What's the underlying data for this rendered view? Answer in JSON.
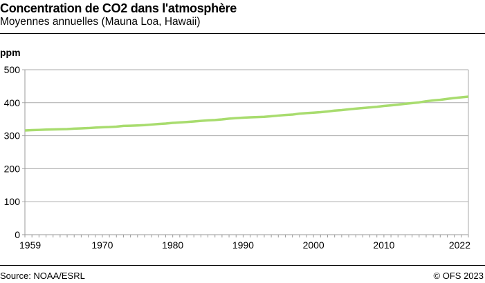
{
  "header": {
    "title": "Concentration de CO2 dans l'atmosphère",
    "subtitle": "Moyennes annuelles (Mauna Loa, Hawaii)"
  },
  "footer": {
    "source": "Source: NOAA/ESRL",
    "copyright": "© OFS 2023"
  },
  "chart_data": {
    "type": "line",
    "title": "Concentration de CO2 dans l'atmosphère",
    "subtitle": "Moyennes annuelles (Mauna Loa, Hawaii)",
    "ylabel": "ppm",
    "xlabel": "",
    "xlim": [
      1959,
      2022
    ],
    "ylim": [
      0,
      500
    ],
    "x_tick_labels": [
      "1959",
      "1970",
      "1980",
      "1990",
      "2000",
      "2010",
      "2022"
    ],
    "y_tick_labels": [
      "0",
      "100",
      "200",
      "300",
      "400",
      "500"
    ],
    "grid": "horizontal",
    "line_color": "#a8dc6e",
    "x": [
      1959,
      1960,
      1961,
      1962,
      1963,
      1964,
      1965,
      1966,
      1967,
      1968,
      1969,
      1970,
      1971,
      1972,
      1973,
      1974,
      1975,
      1976,
      1977,
      1978,
      1979,
      1980,
      1981,
      1982,
      1983,
      1984,
      1985,
      1986,
      1987,
      1988,
      1989,
      1990,
      1991,
      1992,
      1993,
      1994,
      1995,
      1996,
      1997,
      1998,
      1999,
      2000,
      2001,
      2002,
      2003,
      2004,
      2005,
      2006,
      2007,
      2008,
      2009,
      2010,
      2011,
      2012,
      2013,
      2014,
      2015,
      2016,
      2017,
      2018,
      2019,
      2020,
      2021,
      2022
    ],
    "values": [
      316.0,
      316.9,
      317.6,
      318.5,
      319.0,
      319.6,
      320.0,
      321.4,
      322.2,
      323.1,
      324.6,
      325.7,
      326.3,
      327.5,
      329.7,
      330.2,
      331.1,
      332.0,
      333.8,
      335.4,
      336.8,
      338.8,
      340.1,
      341.5,
      343.2,
      344.9,
      346.4,
      347.6,
      349.3,
      351.7,
      353.2,
      354.5,
      355.7,
      356.5,
      357.2,
      359.0,
      361.0,
      362.7,
      363.9,
      366.8,
      368.5,
      369.7,
      371.3,
      373.5,
      376.0,
      377.7,
      380.0,
      382.1,
      384.0,
      385.8,
      387.6,
      390.1,
      391.9,
      394.1,
      396.7,
      398.8,
      401.0,
      404.4,
      406.8,
      408.7,
      411.7,
      414.2,
      416.4,
      418.5
    ]
  }
}
